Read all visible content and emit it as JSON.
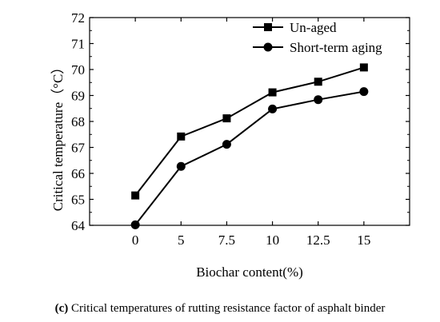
{
  "chart_data": {
    "type": "line",
    "categories": [
      "0",
      "5",
      "7.5",
      "10",
      "12.5",
      "15"
    ],
    "series": [
      {
        "name": "Un-aged",
        "marker": "square",
        "values": [
          65.15,
          67.42,
          68.12,
          69.12,
          69.53,
          70.08
        ]
      },
      {
        "name": "Short-term aging",
        "marker": "circle",
        "values": [
          64.02,
          66.27,
          67.12,
          68.48,
          68.84,
          69.15
        ]
      }
    ],
    "xlabel": "Biochar content(%)",
    "ylabel": "Critical temperature（°C）",
    "ylim": [
      64,
      72
    ],
    "yticks": [
      "64",
      "65",
      "66",
      "67",
      "68",
      "69",
      "70",
      "71",
      "72"
    ],
    "grid": false,
    "legend": "top-right",
    "color": "#000000"
  },
  "caption": {
    "label": "(c)",
    "text": "Critical temperatures of rutting resistance factor of asphalt binder"
  }
}
